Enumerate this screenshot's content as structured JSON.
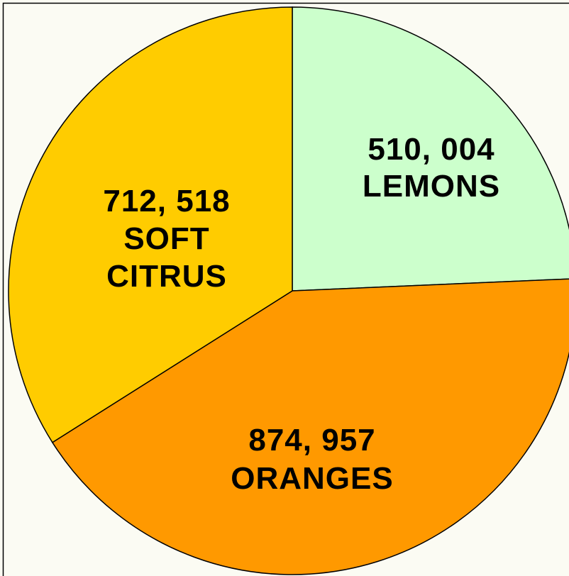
{
  "chart_data": {
    "type": "pie",
    "categories": [
      "LEMONS",
      "ORANGES",
      "SOFT CITRUS"
    ],
    "values": [
      510004,
      874957,
      712518
    ],
    "value_labels": [
      "510, 004",
      "874, 957",
      "712, 518"
    ],
    "colors": [
      "#ccffcc",
      "#ff9900",
      "#ffcc00"
    ]
  }
}
